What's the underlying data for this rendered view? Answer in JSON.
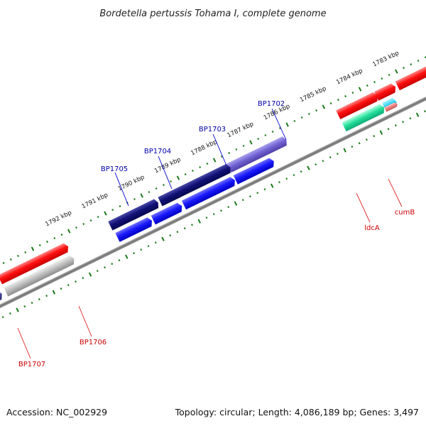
{
  "title": "Bordetella pertussis Tohama I, complete genome",
  "footer": {
    "accession": "Accession: NC_002929",
    "summary": "Topology: circular; Length: 4,086,189 bp; Genes: 3,497"
  },
  "colors": {
    "backbone": "#7f7f7f",
    "tick": "#1a7a1a",
    "label_blue": "#0000aa",
    "label_red": "#cc0000",
    "leader_blue": "#0000cc",
    "leader_red": "#dd2222"
  },
  "ruler": {
    "unit": "kbp",
    "labels": [
      "1783 kbp",
      "1784 kbp",
      "1785 kbp",
      "1786 kbp",
      "1787 kbp",
      "1788 kbp",
      "1789 kbp",
      "1790 kbp",
      "1791 kbp",
      "1792 kbp"
    ]
  },
  "genes": [
    {
      "name": "BP1702",
      "label": "BP1702",
      "color": "blue"
    },
    {
      "name": "BP1703",
      "label": "BP1703",
      "color": "blue"
    },
    {
      "name": "BP1704",
      "label": "BP1704",
      "color": "blue"
    },
    {
      "name": "BP1705",
      "label": "BP1705",
      "color": "blue"
    },
    {
      "name": "BP1706",
      "label": "BP1706",
      "color": "red"
    },
    {
      "name": "BP1707",
      "label": "BP1707",
      "color": "red"
    },
    {
      "name": "ldcA",
      "label": "ldcA",
      "color": "red"
    },
    {
      "name": "cumB",
      "label": "cumB",
      "color": "red"
    }
  ]
}
